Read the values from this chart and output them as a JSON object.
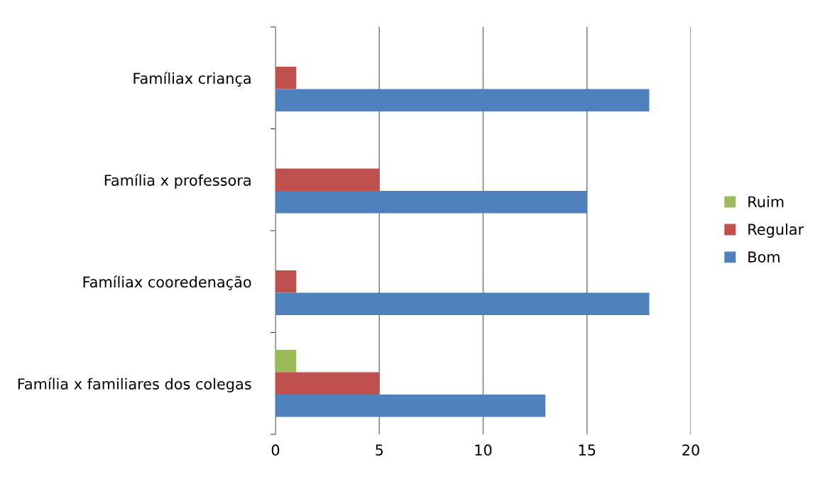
{
  "chart_data": {
    "type": "bar",
    "orientation": "horizontal",
    "categories": [
      "Famíliax criança",
      "Família x professora",
      "Famíliax cooredenação",
      "Família x familiares dos colegas"
    ],
    "series": [
      {
        "name": "Ruim",
        "color": "#9bbb59",
        "values": [
          null,
          null,
          null,
          1
        ]
      },
      {
        "name": "Regular",
        "color": "#c0504d",
        "values": [
          1,
          5,
          1,
          5
        ]
      },
      {
        "name": "Bom",
        "color": "#4f81bd",
        "values": [
          18,
          15,
          18,
          13
        ]
      }
    ],
    "xlim": [
      0,
      20
    ],
    "xticks": [
      0,
      5,
      10,
      15,
      20
    ],
    "grid": "x",
    "legend": "right"
  }
}
